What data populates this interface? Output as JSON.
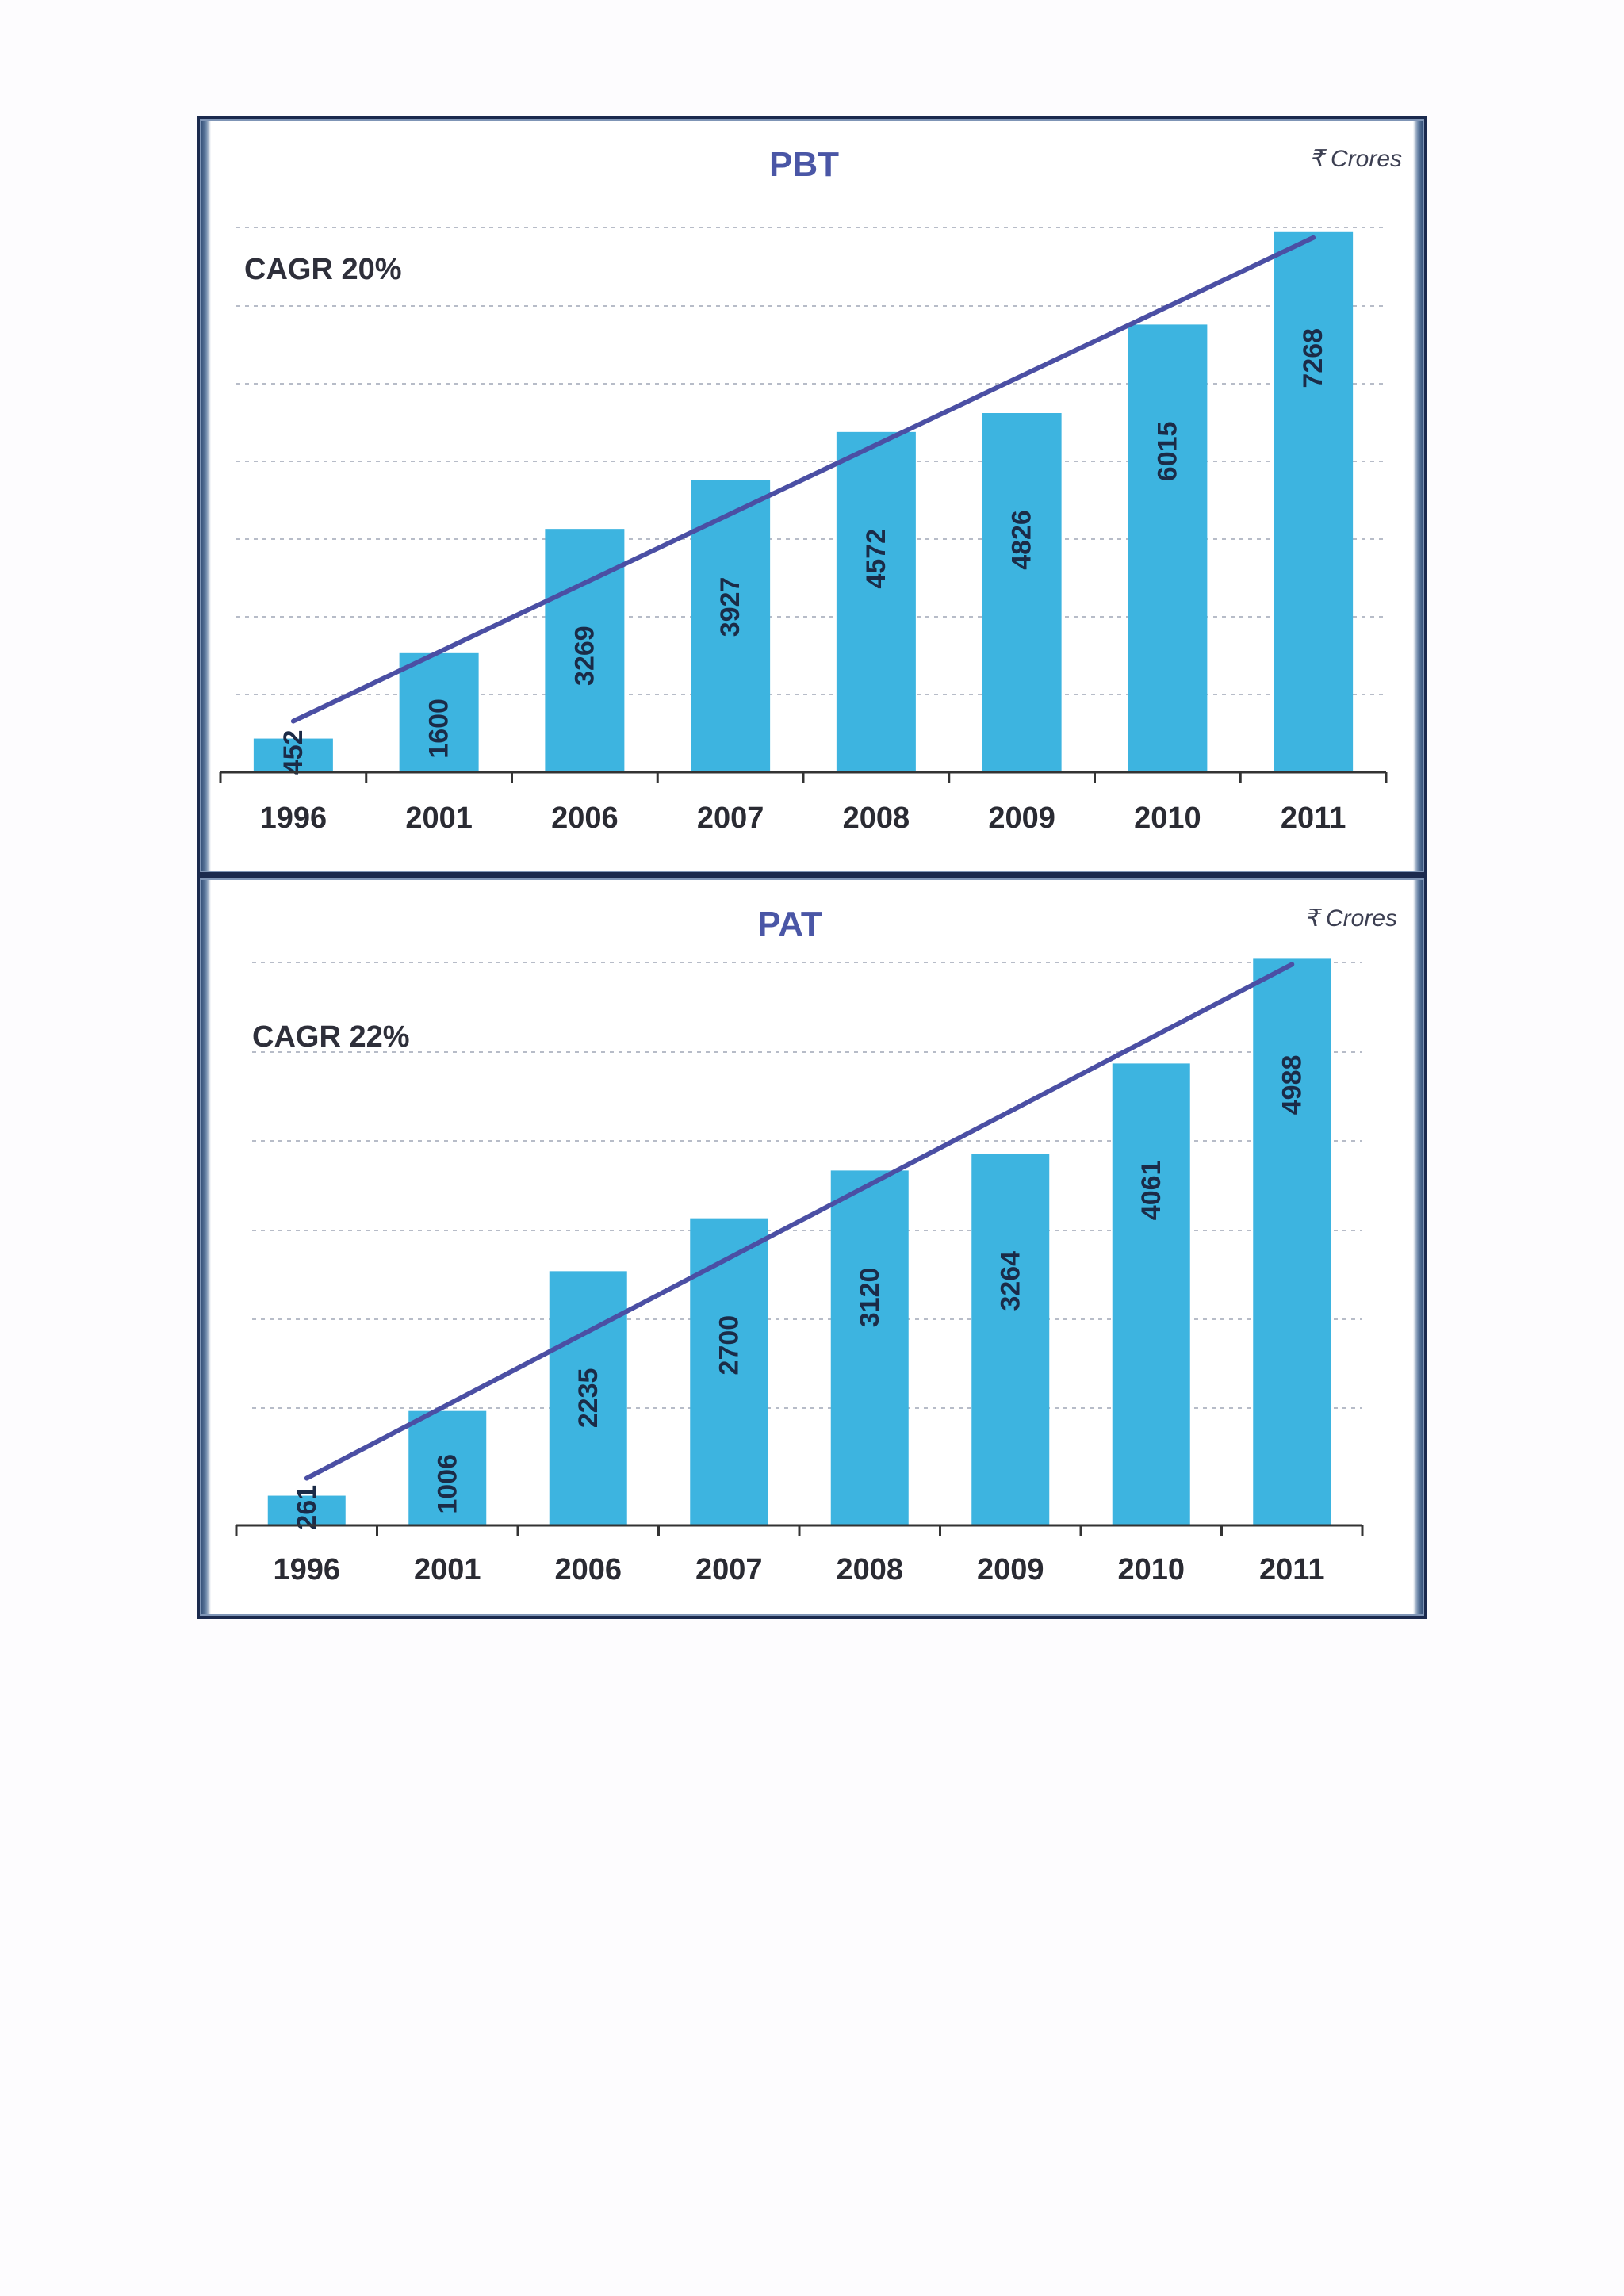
{
  "chart_data": [
    {
      "type": "bar",
      "title": "PBT",
      "unit_label": "₹ Crores",
      "annotation": "CAGR 20%",
      "categories": [
        "1996",
        "2001",
        "2006",
        "2007",
        "2008",
        "2009",
        "2010",
        "2011"
      ],
      "values": [
        452,
        1600,
        3269,
        3927,
        4572,
        4826,
        6015,
        7268
      ],
      "ylim": [
        0,
        7500
      ],
      "grid": true,
      "trend_line": true,
      "colors": {
        "bar": "#3db4e0",
        "trend": "#4b4fa4",
        "title": "#4a56a6"
      }
    },
    {
      "type": "bar",
      "title": "PAT",
      "unit_label": "₹ Crores",
      "annotation": "CAGR 22%",
      "categories": [
        "1996",
        "2001",
        "2006",
        "2007",
        "2008",
        "2009",
        "2010",
        "2011"
      ],
      "values": [
        261,
        1006,
        2235,
        2700,
        3120,
        3264,
        4061,
        4988
      ],
      "ylim": [
        0,
        5200
      ],
      "grid": true,
      "trend_line": true,
      "colors": {
        "bar": "#3db4e0",
        "trend": "#4b4fa4",
        "title": "#4a56a6"
      }
    }
  ]
}
